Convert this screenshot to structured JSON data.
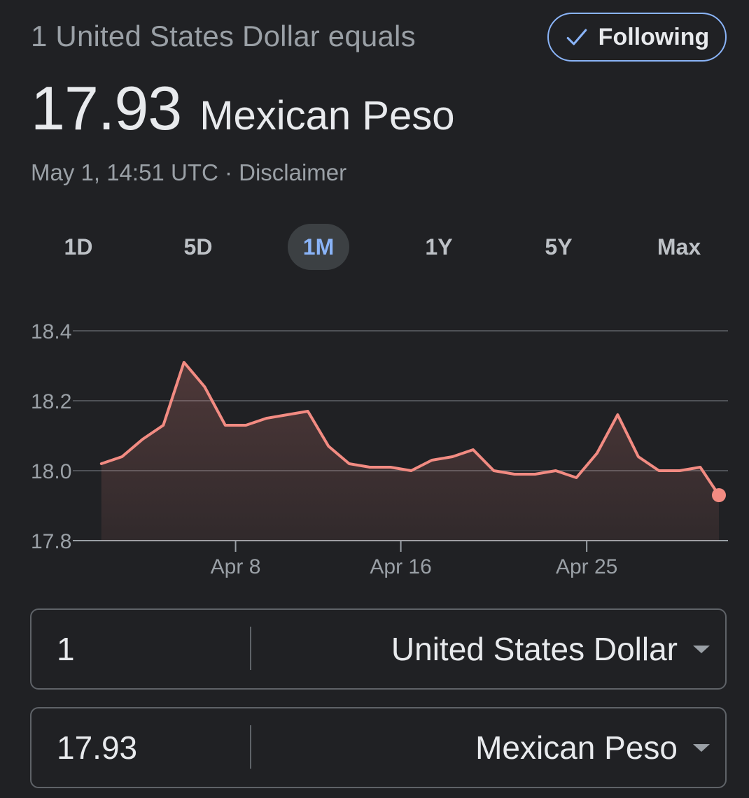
{
  "header": {
    "subtitle": "1 United States Dollar equals",
    "follow_label": "Following",
    "follow_icon": "checkmark-icon",
    "rate_value": "17.93",
    "rate_currency": "Mexican Peso",
    "timestamp": "May 1, 14:51 UTC",
    "separator": " · ",
    "disclaimer": "Disclaimer"
  },
  "range_tabs": [
    {
      "label": "1D",
      "active": false
    },
    {
      "label": "5D",
      "active": false
    },
    {
      "label": "1M",
      "active": true
    },
    {
      "label": "1Y",
      "active": false
    },
    {
      "label": "5Y",
      "active": false
    },
    {
      "label": "Max",
      "active": false
    }
  ],
  "colors": {
    "background": "#202124",
    "line": "#f28b82",
    "accent": "#8ab4f8",
    "grid": "#5f6368",
    "muted_text": "#9aa0a6"
  },
  "chart_data": {
    "type": "area",
    "x_tick_labels": [
      "Apr 8",
      "Apr 16",
      "Apr 25"
    ],
    "x_tick_positions": [
      7,
      15,
      24
    ],
    "y_ticks": [
      "17.8",
      "18.0",
      "18.2",
      "18.4"
    ],
    "ylim": [
      17.8,
      18.4
    ],
    "grid": true,
    "series": [
      {
        "x": [
          0.5,
          1.5,
          2.5,
          3.5,
          4.5,
          5.5,
          6.5,
          7.5,
          8.5,
          9.5,
          10.5,
          11.5,
          12.5,
          13.5,
          14.5,
          15.5,
          16.5,
          17.5,
          18.5,
          19.5,
          20.5,
          21.5,
          22.5,
          23.5,
          24.5,
          25.5,
          26.5,
          27.5,
          28.5,
          29.5,
          30.4
        ],
        "values": [
          18.02,
          18.04,
          18.09,
          18.13,
          18.31,
          18.24,
          18.13,
          18.13,
          18.15,
          18.16,
          18.17,
          18.07,
          18.02,
          18.01,
          18.01,
          18.0,
          18.03,
          18.04,
          18.06,
          18.0,
          17.99,
          17.99,
          18.0,
          17.98,
          18.05,
          18.16,
          18.04,
          18.0,
          18.0,
          18.01,
          17.93
        ]
      }
    ]
  },
  "converter": {
    "from_amount": "1",
    "from_currency": "United States Dollar",
    "to_amount": "17.93",
    "to_currency": "Mexican Peso"
  }
}
